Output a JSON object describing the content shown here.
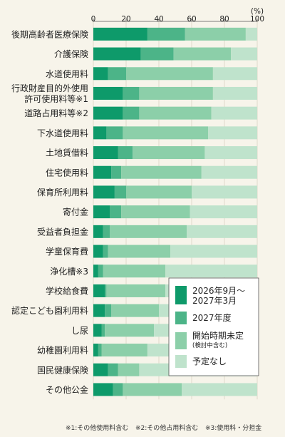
{
  "chart_data": {
    "type": "bar",
    "stacked": "horizontal-100",
    "unit": "(%)",
    "xlim": [
      0,
      100
    ],
    "xticks": [
      0,
      20,
      40,
      60,
      80,
      100
    ],
    "categories": [
      [
        "後期高齢者医療保険"
      ],
      [
        "介護保険"
      ],
      [
        "水道使用料"
      ],
      [
        "行政財産目的外使用",
        "許可使用料等※1"
      ],
      [
        "道路占用料等※2"
      ],
      [
        "下水道使用料"
      ],
      [
        "土地賃借料"
      ],
      [
        "住宅使用料"
      ],
      [
        "保育所利用料"
      ],
      [
        "寄付金"
      ],
      [
        "受益者負担金"
      ],
      [
        "学童保育費"
      ],
      [
        "浄化槽※3"
      ],
      [
        "学校給食費"
      ],
      [
        "認定こども園利用料"
      ],
      [
        "し尿"
      ],
      [
        "幼稚園利用料"
      ],
      [
        "国民健康保険"
      ],
      [
        "その他公金"
      ]
    ],
    "series": [
      {
        "name": [
          "2026年9月〜",
          "2027年3月"
        ],
        "color": "#0e9a6a",
        "values": [
          33,
          29,
          9,
          18,
          18,
          8,
          15,
          11,
          13,
          10,
          6,
          6,
          3,
          7,
          7,
          5,
          3,
          9,
          12
        ]
      },
      {
        "name": [
          "2027年度"
        ],
        "color": "#4cb488",
        "values": [
          23,
          20,
          11,
          10,
          10,
          10,
          9,
          6,
          7,
          7,
          4,
          3,
          3,
          1,
          4,
          2,
          2,
          6,
          6
        ]
      },
      {
        "name": [
          "開始時期未定",
          "(検討中含む)"
        ],
        "color": "#8ccfa9",
        "values": [
          37,
          35,
          53,
          45,
          44,
          52,
          44,
          49,
          40,
          42,
          47,
          38,
          38,
          36,
          29,
          30,
          28,
          13,
          36
        ]
      },
      {
        "name": [
          "予定なし"
        ],
        "color": "#bfe3cc",
        "values": [
          7,
          16,
          27,
          27,
          28,
          30,
          32,
          34,
          40,
          41,
          43,
          53,
          56,
          56,
          60,
          63,
          67,
          72,
          46
        ]
      }
    ]
  },
  "footnotes": [
    "※1:その他使用料含む",
    "※2:その他占用料含む",
    "※3:使用料・分担金"
  ]
}
